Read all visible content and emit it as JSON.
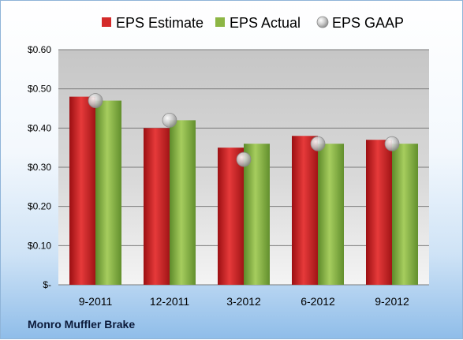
{
  "company_label": "Monro Muffler Brake",
  "chart_data": {
    "type": "bar",
    "categories": [
      "9-2011",
      "12-2011",
      "3-2012",
      "6-2012",
      "9-2012"
    ],
    "series": [
      {
        "name": "EPS Estimate",
        "type": "bar",
        "color": "#d42a2a",
        "values": [
          0.48,
          0.4,
          0.35,
          0.38,
          0.37
        ]
      },
      {
        "name": "EPS Actual",
        "type": "bar",
        "color": "#8db645",
        "values": [
          0.47,
          0.42,
          0.36,
          0.36,
          0.36
        ]
      },
      {
        "name": "EPS GAAP",
        "type": "scatter",
        "color": "#c8c8c8",
        "values": [
          0.47,
          0.42,
          0.32,
          0.36,
          0.36
        ]
      }
    ],
    "ylim": [
      0,
      0.6
    ],
    "yticks": [
      0,
      0.1,
      0.2,
      0.3,
      0.4,
      0.5,
      0.6
    ],
    "ytick_labels": [
      "$-",
      "$0.10",
      "$0.20",
      "$0.30",
      "$0.40",
      "$0.50",
      "$0.60"
    ],
    "grid": true,
    "legend_position": "top"
  }
}
